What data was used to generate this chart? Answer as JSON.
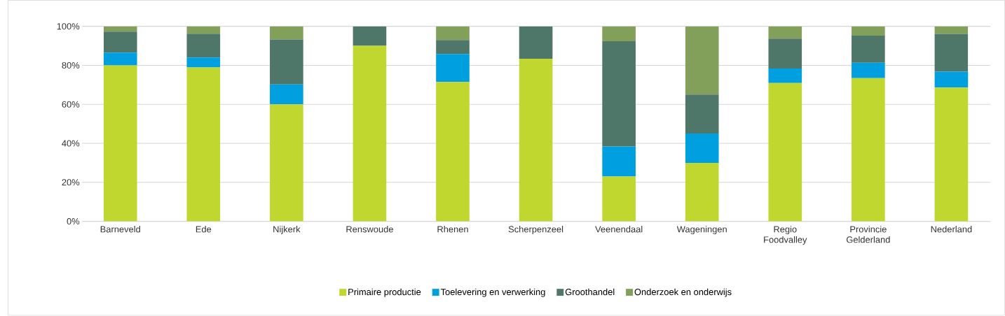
{
  "chart_data": {
    "type": "bar",
    "stacked": true,
    "categories": [
      "Barneveld",
      "Ede",
      "Nijkerk",
      "Renswoude",
      "Rhenen",
      "Scherpenzeel",
      "Veenendaal",
      "Wageningen",
      "Regio Foodvalley",
      "Provincie Gelderland",
      "Nederland"
    ],
    "series": [
      {
        "name": "Primaire productie",
        "color": "#c0d72f",
        "values": [
          80,
          78.9,
          60,
          90,
          71.5,
          83.4,
          23,
          30,
          70.9,
          73.4,
          68.6
        ]
      },
      {
        "name": "Toelevering en verwerking",
        "color": "#009fdf",
        "values": [
          6.5,
          5.1,
          10.2,
          0,
          14.3,
          0,
          15.4,
          15,
          7.5,
          7.9,
          8.2
        ]
      },
      {
        "name": "Groothandel",
        "color": "#4f7769",
        "values": [
          10.8,
          12.2,
          23.1,
          10,
          7.2,
          16.6,
          54,
          20,
          15.3,
          13.9,
          19.3
        ]
      },
      {
        "name": "Onderzoek en onderwijs",
        "color": "#82a05a",
        "values": [
          2.7,
          3.8,
          6.7,
          0,
          7,
          0,
          7.6,
          35,
          6.3,
          4.8,
          3.9
        ]
      }
    ],
    "ylim": [
      0,
      100
    ],
    "yticks": [
      {
        "value": 0,
        "label": "0%"
      },
      {
        "value": 20,
        "label": "20%"
      },
      {
        "value": 40,
        "label": "40%"
      },
      {
        "value": 60,
        "label": "60%"
      },
      {
        "value": 80,
        "label": "80%"
      },
      {
        "value": 100,
        "label": "100%"
      }
    ],
    "grid": "y",
    "legend": "bottom"
  }
}
